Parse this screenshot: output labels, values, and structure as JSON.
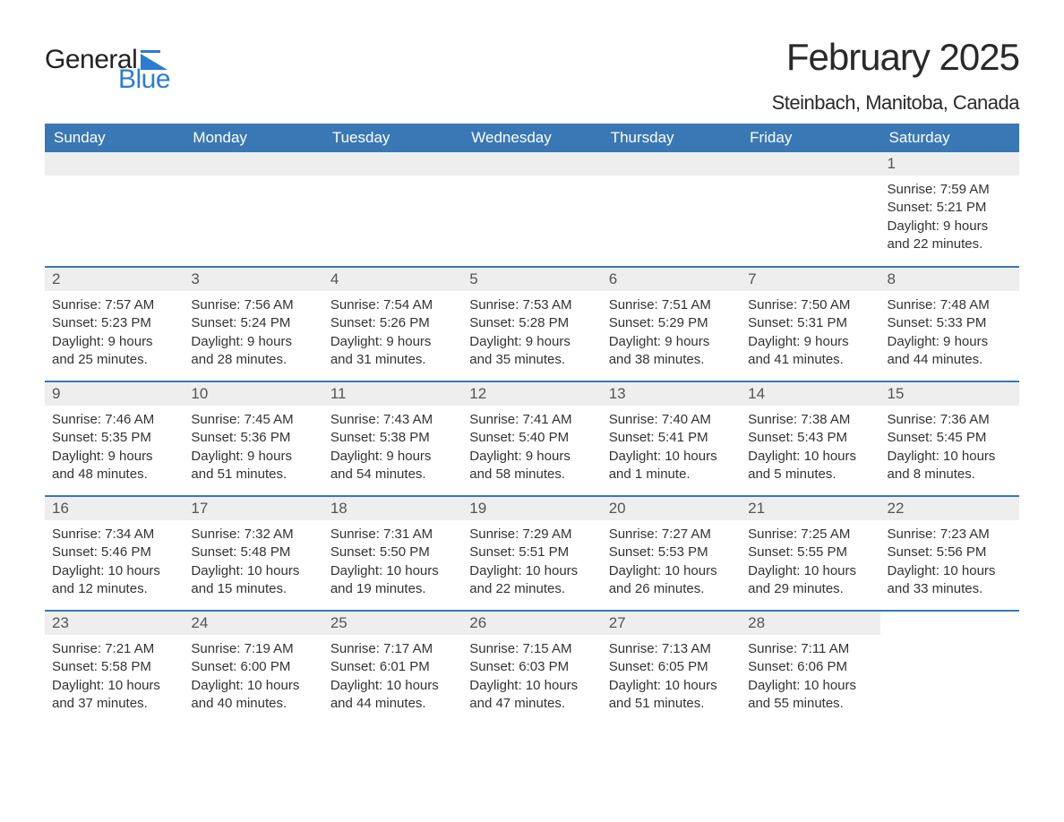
{
  "brand": {
    "text1": "General",
    "text2": "Blue",
    "flag_color": "#2b7cd3"
  },
  "title": "February 2025",
  "location": "Steinbach, Manitoba, Canada",
  "colors": {
    "header_bg": "#3a78b5",
    "header_text": "#ffffff",
    "daynum_bg": "#eeeeee",
    "row_divider": "#3a78b5",
    "body_text": "#333333",
    "page_bg": "#ffffff"
  },
  "weekdays": [
    "Sunday",
    "Monday",
    "Tuesday",
    "Wednesday",
    "Thursday",
    "Friday",
    "Saturday"
  ],
  "first_weekday_index": 6,
  "days": [
    {
      "n": 1,
      "sunrise": "7:59 AM",
      "sunset": "5:21 PM",
      "daylight": "9 hours and 22 minutes."
    },
    {
      "n": 2,
      "sunrise": "7:57 AM",
      "sunset": "5:23 PM",
      "daylight": "9 hours and 25 minutes."
    },
    {
      "n": 3,
      "sunrise": "7:56 AM",
      "sunset": "5:24 PM",
      "daylight": "9 hours and 28 minutes."
    },
    {
      "n": 4,
      "sunrise": "7:54 AM",
      "sunset": "5:26 PM",
      "daylight": "9 hours and 31 minutes."
    },
    {
      "n": 5,
      "sunrise": "7:53 AM",
      "sunset": "5:28 PM",
      "daylight": "9 hours and 35 minutes."
    },
    {
      "n": 6,
      "sunrise": "7:51 AM",
      "sunset": "5:29 PM",
      "daylight": "9 hours and 38 minutes."
    },
    {
      "n": 7,
      "sunrise": "7:50 AM",
      "sunset": "5:31 PM",
      "daylight": "9 hours and 41 minutes."
    },
    {
      "n": 8,
      "sunrise": "7:48 AM",
      "sunset": "5:33 PM",
      "daylight": "9 hours and 44 minutes."
    },
    {
      "n": 9,
      "sunrise": "7:46 AM",
      "sunset": "5:35 PM",
      "daylight": "9 hours and 48 minutes."
    },
    {
      "n": 10,
      "sunrise": "7:45 AM",
      "sunset": "5:36 PM",
      "daylight": "9 hours and 51 minutes."
    },
    {
      "n": 11,
      "sunrise": "7:43 AM",
      "sunset": "5:38 PM",
      "daylight": "9 hours and 54 minutes."
    },
    {
      "n": 12,
      "sunrise": "7:41 AM",
      "sunset": "5:40 PM",
      "daylight": "9 hours and 58 minutes."
    },
    {
      "n": 13,
      "sunrise": "7:40 AM",
      "sunset": "5:41 PM",
      "daylight": "10 hours and 1 minute."
    },
    {
      "n": 14,
      "sunrise": "7:38 AM",
      "sunset": "5:43 PM",
      "daylight": "10 hours and 5 minutes."
    },
    {
      "n": 15,
      "sunrise": "7:36 AM",
      "sunset": "5:45 PM",
      "daylight": "10 hours and 8 minutes."
    },
    {
      "n": 16,
      "sunrise": "7:34 AM",
      "sunset": "5:46 PM",
      "daylight": "10 hours and 12 minutes."
    },
    {
      "n": 17,
      "sunrise": "7:32 AM",
      "sunset": "5:48 PM",
      "daylight": "10 hours and 15 minutes."
    },
    {
      "n": 18,
      "sunrise": "7:31 AM",
      "sunset": "5:50 PM",
      "daylight": "10 hours and 19 minutes."
    },
    {
      "n": 19,
      "sunrise": "7:29 AM",
      "sunset": "5:51 PM",
      "daylight": "10 hours and 22 minutes."
    },
    {
      "n": 20,
      "sunrise": "7:27 AM",
      "sunset": "5:53 PM",
      "daylight": "10 hours and 26 minutes."
    },
    {
      "n": 21,
      "sunrise": "7:25 AM",
      "sunset": "5:55 PM",
      "daylight": "10 hours and 29 minutes."
    },
    {
      "n": 22,
      "sunrise": "7:23 AM",
      "sunset": "5:56 PM",
      "daylight": "10 hours and 33 minutes."
    },
    {
      "n": 23,
      "sunrise": "7:21 AM",
      "sunset": "5:58 PM",
      "daylight": "10 hours and 37 minutes."
    },
    {
      "n": 24,
      "sunrise": "7:19 AM",
      "sunset": "6:00 PM",
      "daylight": "10 hours and 40 minutes."
    },
    {
      "n": 25,
      "sunrise": "7:17 AM",
      "sunset": "6:01 PM",
      "daylight": "10 hours and 44 minutes."
    },
    {
      "n": 26,
      "sunrise": "7:15 AM",
      "sunset": "6:03 PM",
      "daylight": "10 hours and 47 minutes."
    },
    {
      "n": 27,
      "sunrise": "7:13 AM",
      "sunset": "6:05 PM",
      "daylight": "10 hours and 51 minutes."
    },
    {
      "n": 28,
      "sunrise": "7:11 AM",
      "sunset": "6:06 PM",
      "daylight": "10 hours and 55 minutes."
    }
  ],
  "labels": {
    "sunrise": "Sunrise: ",
    "sunset": "Sunset: ",
    "daylight": "Daylight: "
  }
}
